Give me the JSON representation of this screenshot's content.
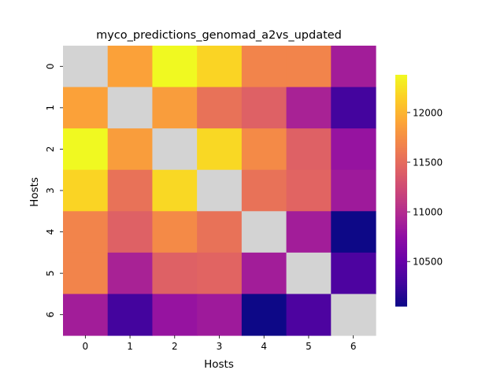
{
  "chart_data": {
    "type": "heatmap",
    "title": "myco_predictions_genomad_a2vs_updated",
    "xlabel": "Hosts",
    "ylabel": "Hosts",
    "x_categories": [
      "0",
      "1",
      "2",
      "3",
      "4",
      "5",
      "6"
    ],
    "y_categories": [
      "0",
      "1",
      "2",
      "3",
      "4",
      "5",
      "6"
    ],
    "values": [
      [
        null,
        11880,
        12380,
        12180,
        11680,
        11680,
        10880
      ],
      [
        11880,
        null,
        11850,
        11550,
        11420,
        10920,
        10300
      ],
      [
        12380,
        11850,
        null,
        12200,
        11720,
        11420,
        10800
      ],
      [
        12180,
        11550,
        12200,
        null,
        11550,
        11450,
        10850
      ],
      [
        11680,
        11420,
        11720,
        11550,
        null,
        10880,
        10050
      ],
      [
        11680,
        10920,
        11420,
        11450,
        10880,
        null,
        10350
      ],
      [
        10880,
        10300,
        10800,
        10850,
        10050,
        10350,
        null
      ]
    ],
    "diagonal_color": "#d3d3d3",
    "colormap": "plasma",
    "vmin": 10050,
    "vmax": 12380,
    "colorbar_ticks": [
      {
        "value": 10500,
        "label": "10500"
      },
      {
        "value": 11000,
        "label": "11000"
      },
      {
        "value": 11500,
        "label": "11500"
      },
      {
        "value": 12000,
        "label": "12000"
      }
    ],
    "grid": false,
    "legend": "colorbar-right"
  }
}
